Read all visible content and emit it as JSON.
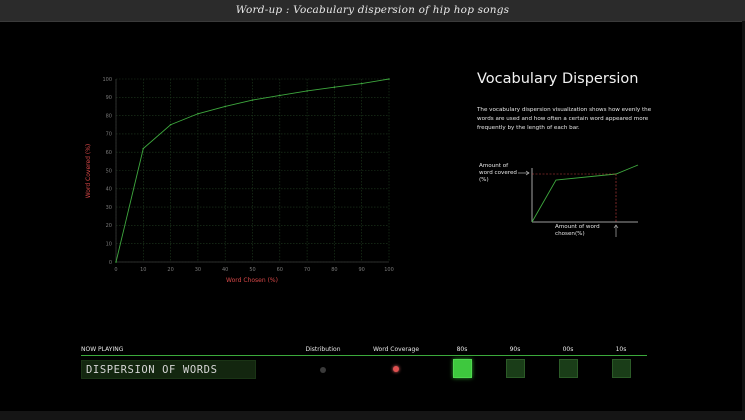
{
  "window": {
    "title": "Word-up : Vocabulary dispersion of hip hop songs"
  },
  "chart_data": {
    "type": "line",
    "x": [
      0,
      10,
      20,
      30,
      40,
      50,
      60,
      70,
      80,
      90,
      100
    ],
    "series": [
      {
        "values": [
          0,
          62,
          75,
          81,
          85,
          88.5,
          91,
          93.5,
          95.5,
          97.5,
          100
        ]
      }
    ],
    "xlabel": "Word Chosen (%)",
    "ylabel": "Word Covered (%)",
    "xlim": [
      0,
      100
    ],
    "ylim": [
      0,
      100
    ],
    "xticks": [
      "0",
      "10",
      "20",
      "30",
      "40",
      "50",
      "60",
      "70",
      "80",
      "90",
      "100"
    ],
    "yticks": [
      "0",
      "10",
      "20",
      "30",
      "40",
      "50",
      "60",
      "70",
      "80",
      "90",
      "100"
    ],
    "grid": true,
    "colors": {
      "line": "#3ea83e",
      "grid": "#1f3b1f",
      "label": "#d94848",
      "tick": "#7a7a7a"
    }
  },
  "panel": {
    "title": "Vocabulary Dispersion",
    "description": "The vocabulary dispersion visualization shows how evenly the words are used and how often a certain word appeared more frequently by the length of each bar.",
    "legend_y": "Amount of word covered (%)",
    "legend_x": "Amount of word chosen(%)"
  },
  "now_playing": {
    "header": "NOW PLAYING",
    "value": "DISPERSION OF WORDS",
    "columns": {
      "distribution": "Distribution",
      "coverage": "Word Coverage"
    },
    "eras": [
      {
        "label": "80s",
        "active": true
      },
      {
        "label": "90s",
        "active": false
      },
      {
        "label": "00s",
        "active": false
      },
      {
        "label": "10s",
        "active": false
      }
    ]
  }
}
